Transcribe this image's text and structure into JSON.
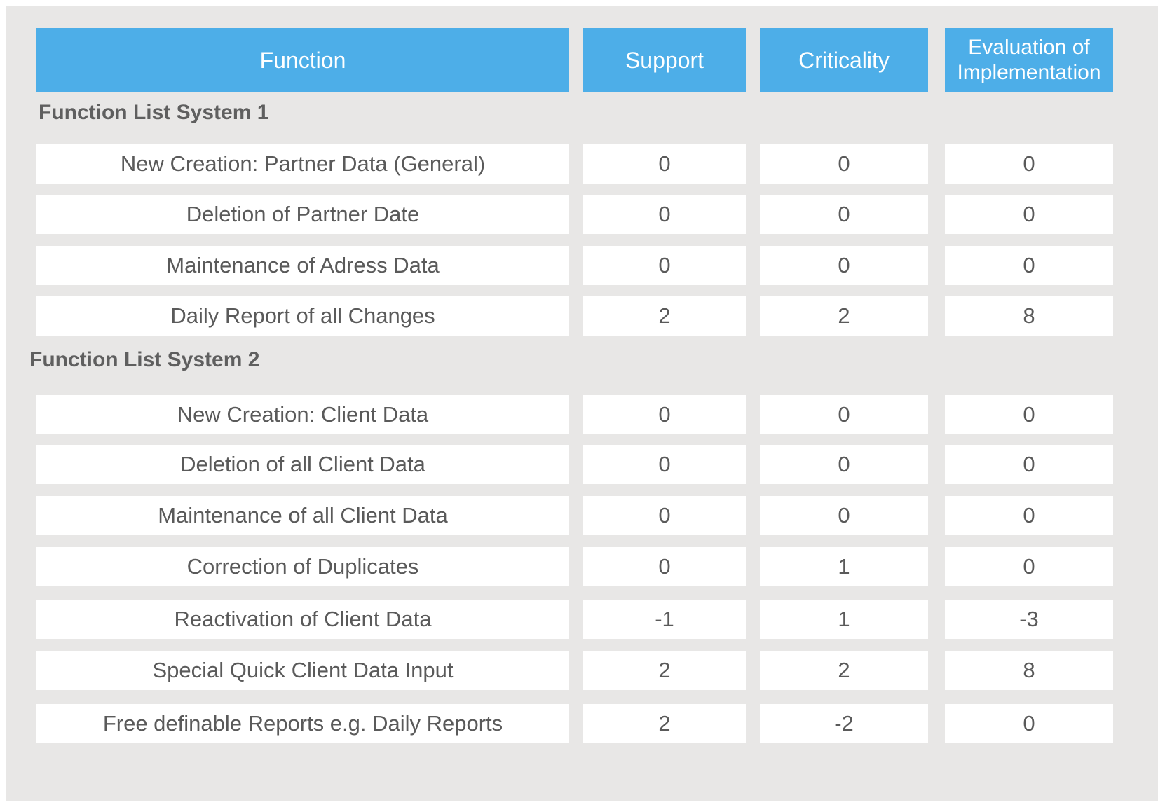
{
  "table": {
    "headers": {
      "function": "Function",
      "support": "Support",
      "criticality": "Criticality",
      "evaluation_line1": "Evaluation of",
      "evaluation_line2": "Implementation"
    },
    "sections": [
      {
        "title": "Function List System 1",
        "rows": [
          {
            "function": "New Creation: Partner Data (General)",
            "support": "0",
            "criticality": "0",
            "evaluation": "0"
          },
          {
            "function": "Deletion of Partner Date",
            "support": "0",
            "criticality": "0",
            "evaluation": "0"
          },
          {
            "function": "Maintenance of Adress Data",
            "support": "0",
            "criticality": "0",
            "evaluation": "0"
          },
          {
            "function": "Daily Report of all Changes",
            "support": "2",
            "criticality": "2",
            "evaluation": "8"
          }
        ]
      },
      {
        "title": "Function List System 2",
        "rows": [
          {
            "function": "New Creation: Client Data",
            "support": "0",
            "criticality": "0",
            "evaluation": "0"
          },
          {
            "function": "Deletion of all Client Data",
            "support": "0",
            "criticality": "0",
            "evaluation": "0"
          },
          {
            "function": "Maintenance of all Client Data",
            "support": "0",
            "criticality": "0",
            "evaluation": "0"
          },
          {
            "function": "Correction of Duplicates",
            "support": "0",
            "criticality": "1",
            "evaluation": "0"
          },
          {
            "function": "Reactivation of Client Data",
            "support": "-1",
            "criticality": "1",
            "evaluation": "-3"
          },
          {
            "function": "Special Quick Client Data Input",
            "support": "2",
            "criticality": "2",
            "evaluation": "8"
          },
          {
            "function": "Free definable Reports e.g. Daily Reports",
            "support": "2",
            "criticality": "-2",
            "evaluation": "0"
          }
        ]
      }
    ]
  },
  "colors": {
    "header_bg": "#4daee8",
    "header_text": "#ffffff",
    "panel_bg": "#e8e7e6",
    "cell_bg": "#ffffff",
    "cell_text": "#5a5a5a"
  }
}
